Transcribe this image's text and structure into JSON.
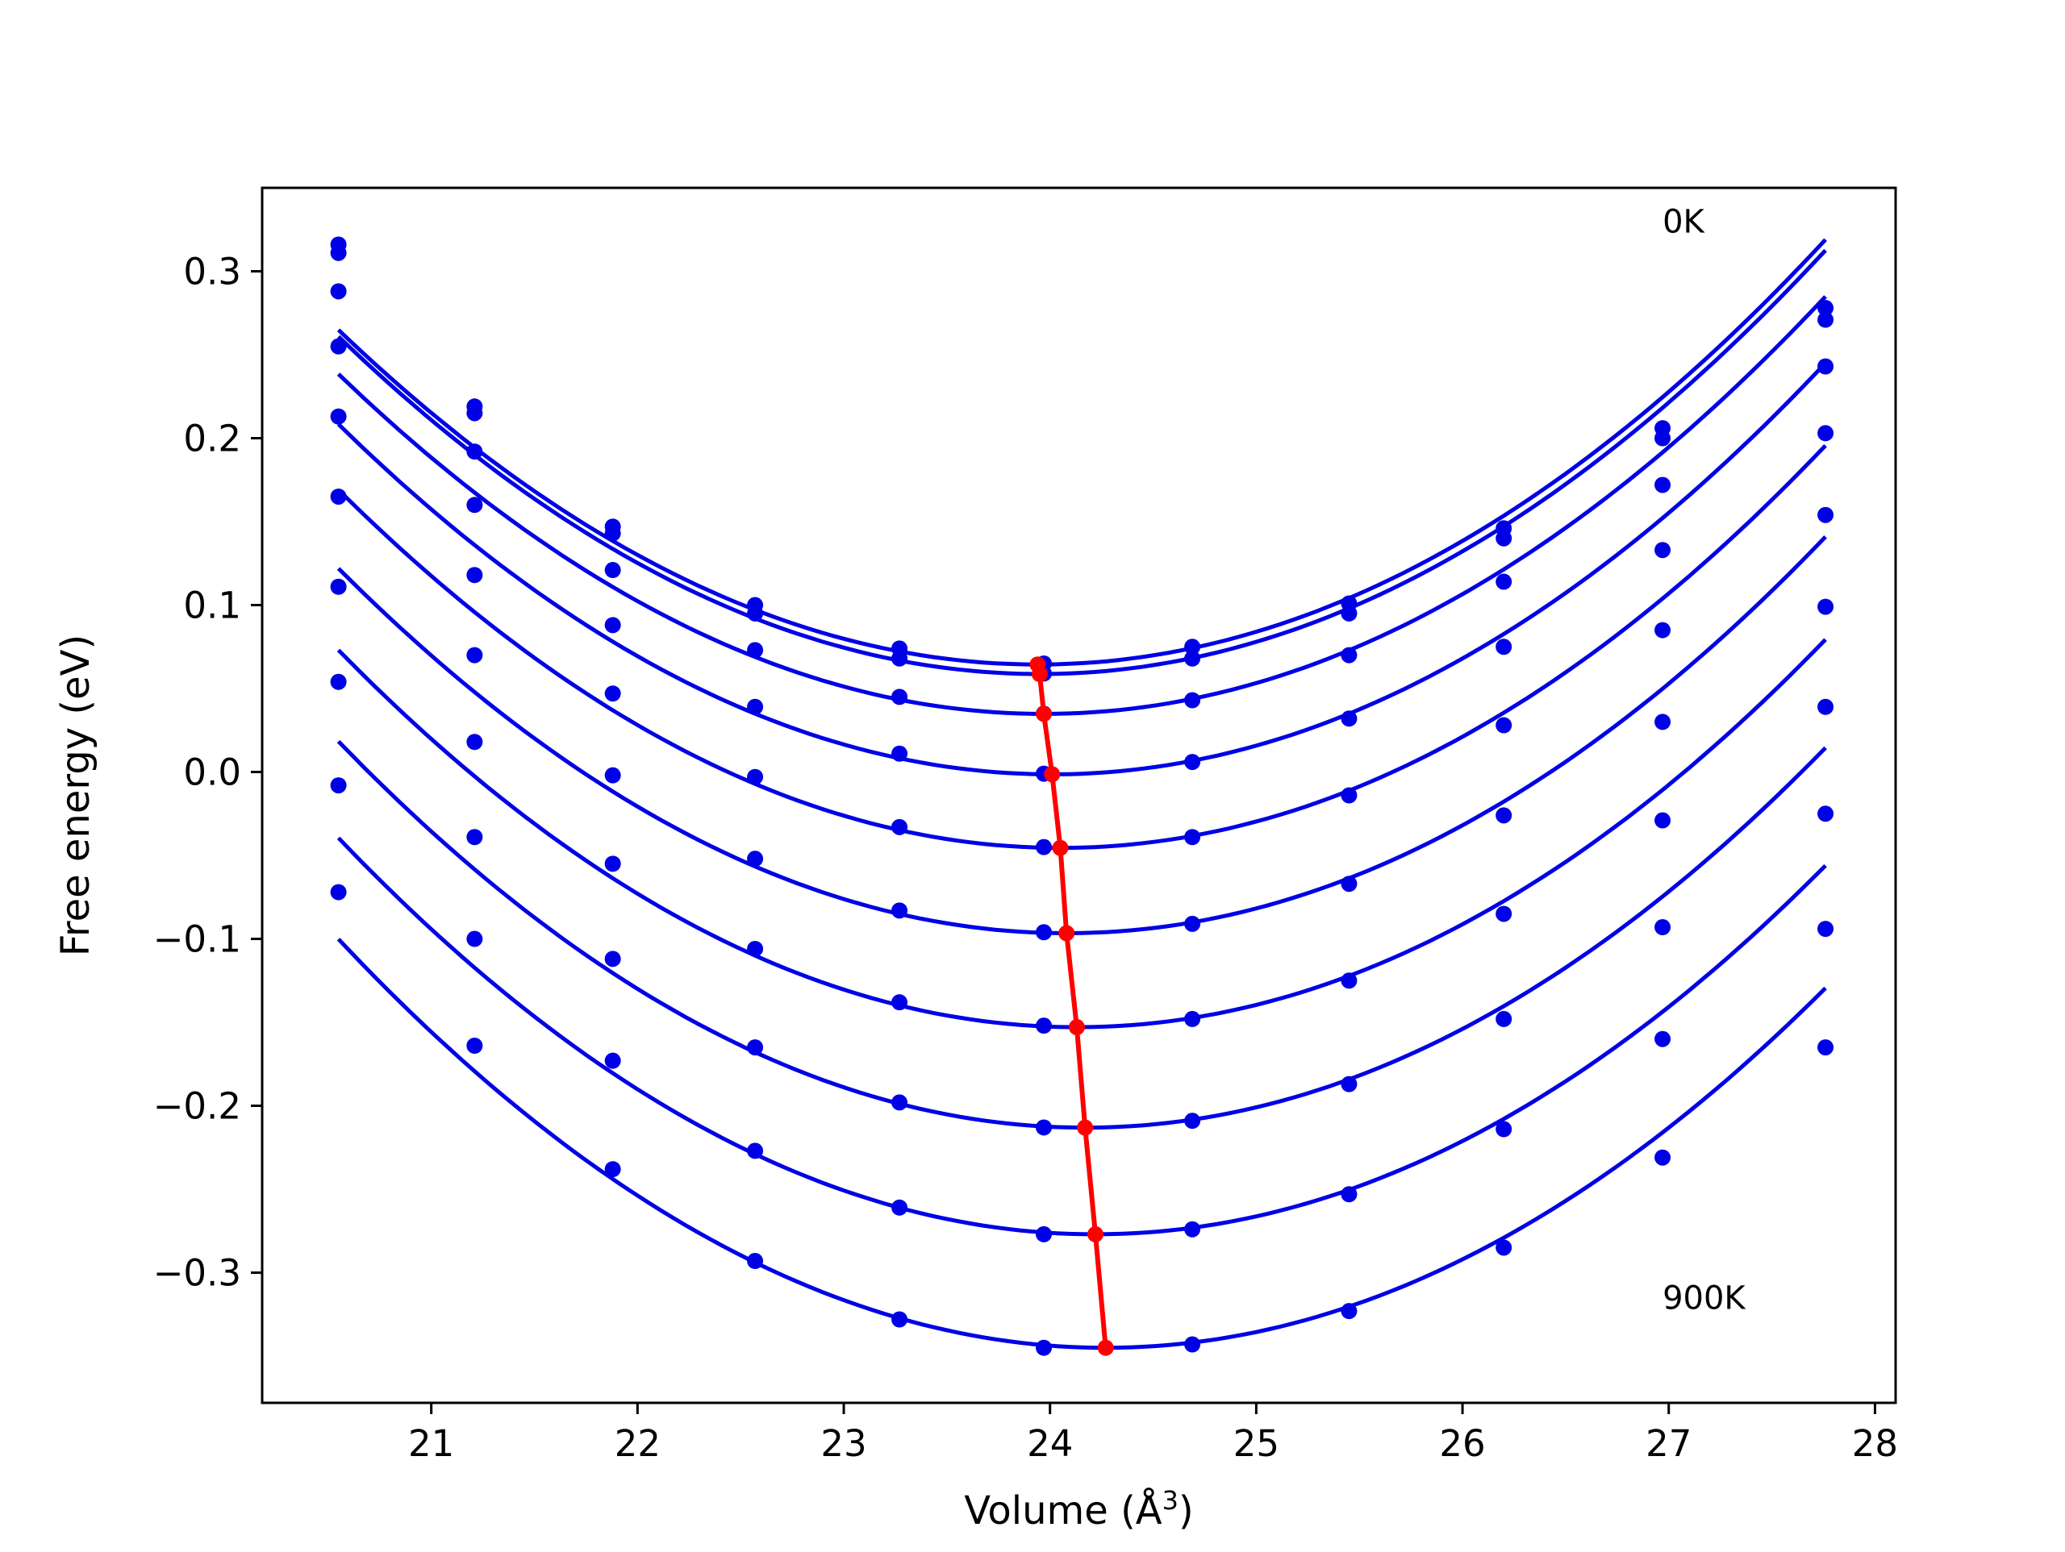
{
  "chart_data": {
    "type": "line",
    "title": "",
    "xlabel": "Volume (Å",
    "xlabel_superscript": "3",
    "xlabel_suffix": ")",
    "ylabel": "Free energy (eV)",
    "xlim": [
      20.18,
      28.1
    ],
    "ylim": [
      -0.378,
      0.35
    ],
    "xticks": [
      21,
      22,
      23,
      24,
      25,
      26,
      27,
      28
    ],
    "xtick_labels": [
      "21",
      "22",
      "23",
      "24",
      "25",
      "26",
      "27",
      "28"
    ],
    "yticks": [
      0.3,
      0.2,
      0.1,
      0.0,
      -0.1,
      -0.2,
      -0.3
    ],
    "ytick_labels": [
      "0.3",
      "0.2",
      "0.1",
      "0.0",
      "−0.1",
      "−0.2",
      "−0.3"
    ],
    "grid": false,
    "legend": "none",
    "annotations": [
      {
        "text": "0K",
        "x": 26.97,
        "y": 0.33
      },
      {
        "text": "900K",
        "x": 26.97,
        "y": -0.315
      }
    ],
    "x": [
      20.55,
      21.21,
      21.88,
      22.57,
      23.27,
      23.97,
      24.69,
      25.45,
      26.2,
      26.97,
      27.76
    ],
    "series_color": "#0000e6",
    "series": [
      {
        "values": [
          0.316,
          0.219,
          0.147,
          0.1,
          0.074,
          0.065,
          0.075,
          0.101,
          0.146,
          0.206,
          0.278
        ],
        "min": [
          23.94,
          0.0644
        ]
      },
      {
        "values": [
          0.311,
          0.215,
          0.143,
          0.095,
          0.068,
          0.059,
          0.068,
          0.095,
          0.14,
          0.2,
          0.271
        ],
        "min": [
          23.95,
          0.0587
        ]
      },
      {
        "values": [
          0.288,
          0.192,
          0.121,
          0.073,
          0.045,
          0.035,
          0.043,
          0.07,
          0.114,
          0.172,
          0.243
        ],
        "min": [
          23.97,
          0.0348
        ]
      },
      {
        "values": [
          0.255,
          0.16,
          0.088,
          0.039,
          0.011,
          -0.001,
          0.006,
          0.032,
          0.075,
          0.133,
          0.203
        ],
        "min": [
          24.01,
          -0.0014
        ]
      },
      {
        "values": [
          0.213,
          0.118,
          0.047,
          -0.003,
          -0.033,
          -0.045,
          -0.039,
          -0.014,
          0.028,
          0.085,
          0.154
        ],
        "min": [
          24.05,
          -0.0455
        ]
      },
      {
        "values": [
          0.165,
          0.07,
          -0.002,
          -0.052,
          -0.083,
          -0.096,
          -0.091,
          -0.067,
          -0.026,
          0.03,
          0.099
        ],
        "min": [
          24.08,
          -0.0966
        ]
      },
      {
        "values": [
          0.111,
          0.018,
          -0.055,
          -0.106,
          -0.138,
          -0.152,
          -0.148,
          -0.125,
          -0.085,
          -0.029,
          0.039
        ],
        "min": [
          24.13,
          -0.1529
        ]
      },
      {
        "values": [
          0.054,
          -0.039,
          -0.112,
          -0.165,
          -0.198,
          -0.213,
          -0.209,
          -0.187,
          -0.148,
          -0.093,
          -0.025
        ],
        "min": [
          24.17,
          -0.2131
        ]
      },
      {
        "values": [
          -0.008,
          -0.1,
          -0.173,
          -0.227,
          -0.261,
          -0.277,
          -0.274,
          -0.253,
          -0.214,
          -0.16,
          -0.094
        ],
        "min": [
          24.22,
          -0.277
        ]
      },
      {
        "values": [
          -0.072,
          -0.164,
          -0.238,
          -0.293,
          -0.328,
          -0.345,
          -0.343,
          -0.323,
          -0.285,
          -0.231,
          -0.165
        ],
        "min": [
          24.27,
          -0.345
        ]
      }
    ],
    "minimum_line_color": "#ff0000"
  }
}
